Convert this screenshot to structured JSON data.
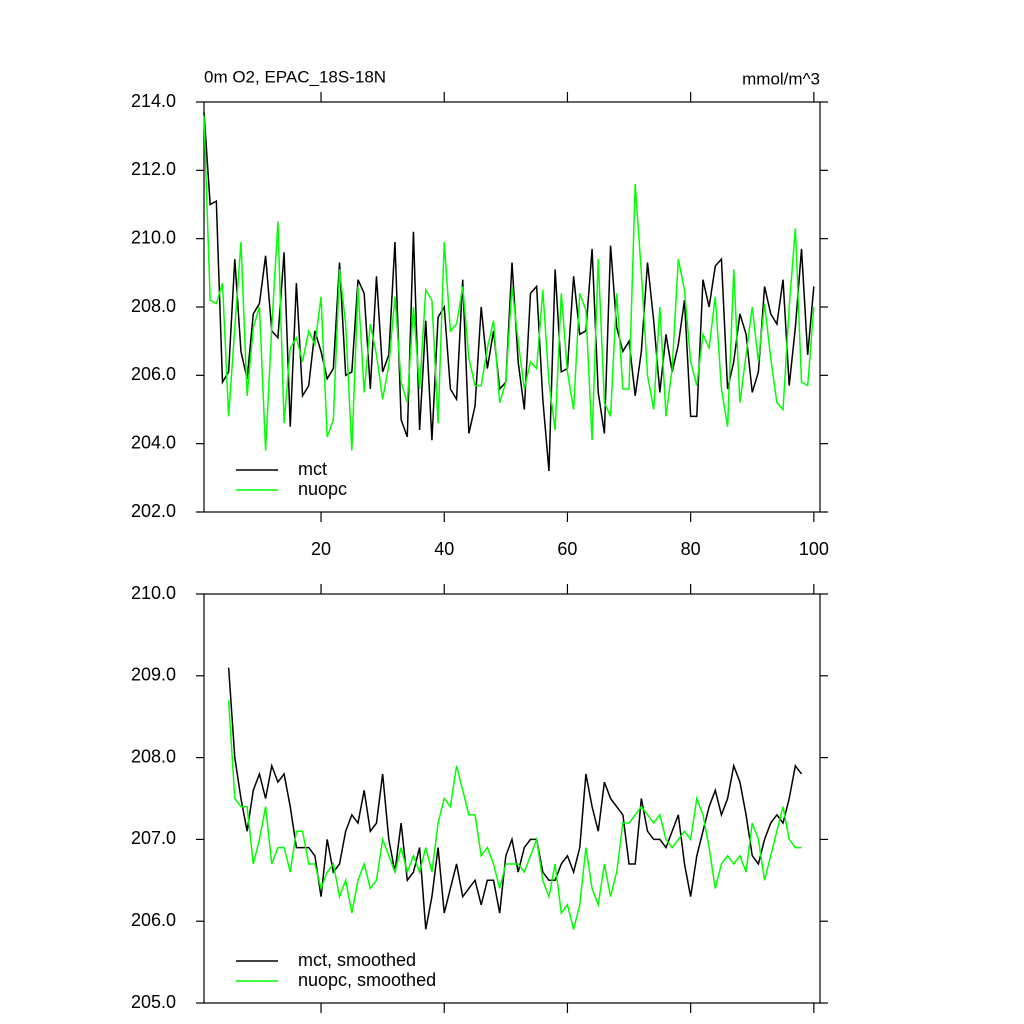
{
  "chart_data": [
    {
      "type": "line",
      "title": "0m O2, EPAC_18S-18N",
      "units": "mmol/m^3",
      "x": [
        1,
        2,
        3,
        4,
        5,
        6,
        7,
        8,
        9,
        10,
        11,
        12,
        13,
        14,
        15,
        16,
        17,
        18,
        19,
        20,
        21,
        22,
        23,
        24,
        25,
        26,
        27,
        28,
        29,
        30,
        31,
        32,
        33,
        34,
        35,
        36,
        37,
        38,
        39,
        40,
        41,
        42,
        43,
        44,
        45,
        46,
        47,
        48,
        49,
        50,
        51,
        52,
        53,
        54,
        55,
        56,
        57,
        58,
        59,
        60,
        61,
        62,
        63,
        64,
        65,
        66,
        67,
        68,
        69,
        70,
        71,
        72,
        73,
        74,
        75,
        76,
        77,
        78,
        79,
        80,
        81,
        82,
        83,
        84,
        85,
        86,
        87,
        88,
        89,
        90,
        91,
        92,
        93,
        94,
        95,
        96,
        97,
        98,
        99,
        100
      ],
      "series": [
        {
          "name": "mct",
          "color": "#000000",
          "values": [
            213.7,
            211.0,
            211.1,
            205.8,
            206.1,
            209.4,
            206.7,
            205.9,
            207.8,
            208.1,
            209.5,
            207.3,
            207.1,
            209.6,
            204.5,
            208.7,
            205.4,
            205.7,
            207.3,
            206.7,
            205.9,
            206.2,
            209.3,
            206.0,
            206.1,
            208.8,
            208.4,
            205.6,
            208.9,
            206.1,
            206.6,
            209.9,
            204.7,
            204.2,
            210.2,
            204.4,
            207.6,
            204.1,
            207.7,
            208.0,
            205.6,
            205.3,
            208.8,
            204.3,
            205.1,
            208.0,
            206.2,
            207.3,
            205.6,
            205.8,
            209.3,
            206.4,
            205.0,
            208.4,
            208.6,
            205.3,
            203.2,
            209.1,
            206.1,
            206.2,
            208.9,
            207.2,
            207.3,
            209.7,
            205.5,
            204.3,
            209.8,
            207.4,
            206.7,
            207.0,
            205.4,
            206.7,
            209.3,
            207.6,
            205.5,
            207.2,
            206.1,
            206.9,
            208.2,
            204.8,
            204.8,
            208.8,
            208.0,
            209.2,
            209.4,
            205.6,
            206.4,
            207.8,
            207.2,
            205.5,
            206.1,
            208.6,
            207.8,
            207.5,
            208.8,
            205.7,
            207.4,
            209.7,
            206.6,
            208.6
          ]
        },
        {
          "name": "nuopc",
          "color": "#00ff00",
          "values": [
            213.6,
            208.2,
            208.1,
            208.7,
            204.8,
            207.4,
            209.9,
            205.4,
            207.4,
            208.0,
            203.8,
            207.4,
            210.5,
            204.6,
            206.8,
            207.1,
            206.4,
            207.3,
            206.9,
            208.3,
            204.2,
            204.7,
            209.1,
            207.5,
            203.8,
            208.6,
            205.5,
            207.5,
            206.6,
            205.3,
            206.3,
            208.3,
            205.8,
            205.2,
            208.0,
            205.6,
            208.5,
            208.2,
            204.6,
            209.9,
            207.3,
            207.5,
            208.6,
            206.5,
            205.7,
            205.7,
            206.8,
            207.6,
            205.2,
            205.8,
            208.6,
            207.0,
            205.6,
            206.4,
            206.2,
            208.5,
            205.8,
            204.4,
            208.4,
            206.1,
            205.0,
            208.4,
            207.9,
            204.1,
            209.4,
            205.2,
            204.8,
            208.4,
            205.6,
            205.6,
            211.6,
            209.0,
            206.0,
            205.0,
            208.0,
            204.8,
            206.2,
            209.4,
            208.5,
            206.4,
            205.7,
            207.2,
            206.8,
            208.3,
            205.6,
            204.5,
            209.1,
            205.2,
            206.6,
            208.0,
            206.4,
            208.1,
            206.5,
            205.2,
            205.0,
            208.0,
            210.3,
            205.8,
            205.7,
            208.0
          ]
        }
      ],
      "xlim": [
        1,
        101
      ],
      "xticks": [
        20,
        40,
        60,
        80,
        100
      ],
      "ylim": [
        202,
        214
      ],
      "yticks": [
        {
          "value": 202,
          "label": "202.0"
        },
        {
          "value": 204,
          "label": "204.0"
        },
        {
          "value": 206,
          "label": "206.0"
        },
        {
          "value": 208,
          "label": "208.0"
        },
        {
          "value": 210,
          "label": "210.0"
        },
        {
          "value": 212,
          "label": "212.0"
        },
        {
          "value": 214,
          "label": "214.0"
        }
      ],
      "legend": "lower left"
    },
    {
      "type": "line",
      "x": [
        5,
        6,
        7,
        8,
        9,
        10,
        11,
        12,
        13,
        14,
        15,
        16,
        17,
        18,
        19,
        20,
        21,
        22,
        23,
        24,
        25,
        26,
        27,
        28,
        29,
        30,
        31,
        32,
        33,
        34,
        35,
        36,
        37,
        38,
        39,
        40,
        41,
        42,
        43,
        44,
        45,
        46,
        47,
        48,
        49,
        50,
        51,
        52,
        53,
        54,
        55,
        56,
        57,
        58,
        59,
        60,
        61,
        62,
        63,
        64,
        65,
        66,
        67,
        68,
        69,
        70,
        71,
        72,
        73,
        74,
        75,
        76,
        77,
        78,
        79,
        80,
        81,
        82,
        83,
        84,
        85,
        86,
        87,
        88,
        89,
        90,
        91,
        92,
        93,
        94,
        95,
        96,
        97,
        98
      ],
      "series": [
        {
          "name": "mct, smoothed",
          "color": "#000000",
          "values": [
            209.1,
            208.0,
            207.5,
            207.1,
            207.6,
            207.8,
            207.5,
            207.9,
            207.7,
            207.8,
            207.4,
            206.9,
            206.9,
            206.9,
            206.8,
            206.3,
            207.0,
            206.6,
            206.7,
            207.1,
            207.3,
            207.2,
            207.6,
            207.1,
            207.2,
            207.8,
            207.0,
            206.6,
            207.2,
            206.5,
            206.6,
            206.9,
            205.9,
            206.3,
            206.9,
            206.1,
            206.4,
            206.7,
            206.3,
            206.4,
            206.5,
            206.2,
            206.5,
            206.5,
            206.1,
            206.8,
            207.0,
            206.6,
            206.9,
            207.0,
            207.0,
            206.6,
            206.5,
            206.5,
            206.7,
            206.8,
            206.6,
            206.9,
            207.8,
            207.4,
            207.1,
            207.7,
            207.5,
            207.4,
            207.3,
            206.7,
            206.7,
            207.5,
            207.1,
            207.0,
            207.0,
            206.9,
            207.1,
            207.3,
            206.7,
            206.3,
            206.8,
            207.1,
            207.4,
            207.6,
            207.3,
            207.5,
            207.9,
            207.7,
            207.3,
            206.8,
            206.7,
            207.0,
            207.2,
            207.3,
            207.2,
            207.5,
            207.9,
            207.8
          ]
        },
        {
          "name": "nuopc, smoothed",
          "color": "#00ff00",
          "values": [
            208.7,
            207.5,
            207.4,
            207.4,
            206.7,
            207.0,
            207.4,
            206.7,
            206.9,
            206.9,
            206.6,
            207.1,
            207.1,
            206.7,
            206.7,
            206.4,
            206.6,
            206.7,
            206.3,
            206.5,
            206.1,
            206.5,
            206.7,
            206.4,
            206.5,
            207.0,
            206.8,
            206.6,
            206.9,
            206.6,
            206.8,
            206.6,
            206.9,
            206.6,
            207.2,
            207.5,
            207.4,
            207.9,
            207.6,
            207.3,
            207.3,
            206.8,
            206.9,
            206.7,
            206.4,
            206.7,
            206.7,
            206.7,
            206.6,
            206.8,
            207.0,
            206.5,
            206.3,
            206.7,
            206.1,
            206.2,
            205.9,
            206.2,
            206.9,
            206.4,
            206.2,
            206.7,
            206.3,
            206.6,
            207.2,
            207.2,
            207.3,
            207.4,
            207.3,
            207.2,
            207.3,
            207.0,
            206.9,
            207.0,
            207.1,
            207.0,
            207.5,
            207.3,
            206.9,
            206.4,
            206.7,
            206.8,
            206.7,
            206.8,
            206.6,
            207.2,
            207.0,
            206.5,
            206.8,
            207.1,
            207.4,
            207.0,
            206.9,
            206.9
          ]
        }
      ],
      "xlim": [
        1,
        101
      ],
      "xticks": [
        20,
        40,
        60,
        80,
        100
      ],
      "ylim": [
        205,
        210
      ],
      "yticks": [
        {
          "value": 205,
          "label": "205.0"
        },
        {
          "value": 206,
          "label": "206.0"
        },
        {
          "value": 207,
          "label": "207.0"
        },
        {
          "value": 208,
          "label": "208.0"
        },
        {
          "value": 209,
          "label": "209.0"
        },
        {
          "value": 210,
          "label": "210.0"
        }
      ],
      "legend": "lower left"
    }
  ]
}
